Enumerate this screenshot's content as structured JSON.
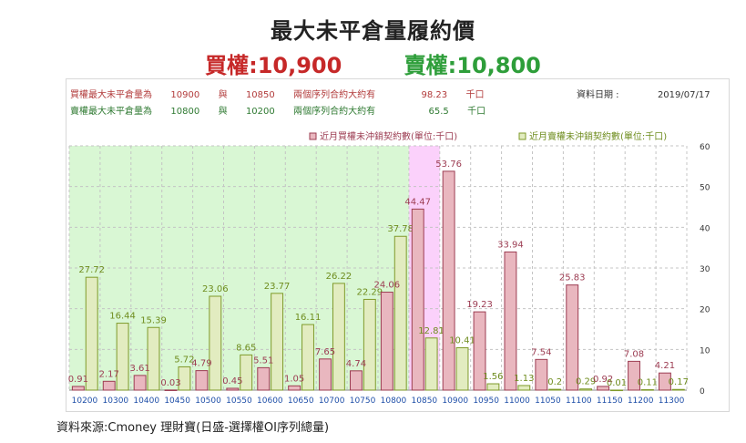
{
  "title": "最大未平倉量履約價",
  "subtitle": {
    "call_label": "買權:10,900",
    "put_label": "賣權:10,800"
  },
  "info": {
    "call_row": {
      "label": "買權最大未平倉量為",
      "strike1": "10900",
      "conj": "與",
      "strike2": "10850",
      "text": "兩個序列合約大約有",
      "value": "98.23",
      "unit": "千口"
    },
    "put_row": {
      "label": "賣權最大未平倉量為",
      "strike1": "10800",
      "conj": "與",
      "strike2": "10200",
      "text": "兩個序列合約大約有",
      "value": "65.5",
      "unit": "千口"
    },
    "date_label": "資料日期 :",
    "date": "2019/07/17"
  },
  "source": "資料來源:Cmoney 理財寶(日盛-選擇權OI序列總量)",
  "colors": {
    "call_bar": "#e9b7bf",
    "call_border": "#9c3c52",
    "put_bar": "#e2ecc0",
    "put_border": "#7f9a2a",
    "green_zone": "#d9f7d4",
    "pink_zone": "#fbd1fb",
    "call_text": "#9c3c52",
    "put_text": "#6e8c1d"
  },
  "chart_data": {
    "type": "bar",
    "categories": [
      "10200",
      "10300",
      "10400",
      "10450",
      "10500",
      "10550",
      "10600",
      "10650",
      "10700",
      "10750",
      "10800",
      "10850",
      "10900",
      "10950",
      "11000",
      "11050",
      "11100",
      "11150",
      "11200",
      "11300"
    ],
    "series": [
      {
        "name": "近月買權未沖銷契約數(單位:千口)",
        "values": [
          0.91,
          2.17,
          3.61,
          0.03,
          4.79,
          0.45,
          5.51,
          1.05,
          7.65,
          4.74,
          24.06,
          44.47,
          53.76,
          19.23,
          33.94,
          7.54,
          25.83,
          0.92,
          7.08,
          4.21
        ]
      },
      {
        "name": "近月賣權未沖銷契約數(單位:千口)",
        "values": [
          27.72,
          16.44,
          15.39,
          5.72,
          23.06,
          8.65,
          23.77,
          16.11,
          26.22,
          22.29,
          37.78,
          12.81,
          10.41,
          1.56,
          1.13,
          0.2,
          0.29,
          0.01,
          0.11,
          0.17
        ]
      }
    ],
    "ylim": [
      0,
      60
    ],
    "yticks": [
      0,
      10,
      20,
      30,
      40,
      50,
      60
    ],
    "green_zone": [
      "10200",
      "10800"
    ],
    "pink_zone": [
      "10850"
    ],
    "grid": true,
    "legend_position": "top-right"
  }
}
